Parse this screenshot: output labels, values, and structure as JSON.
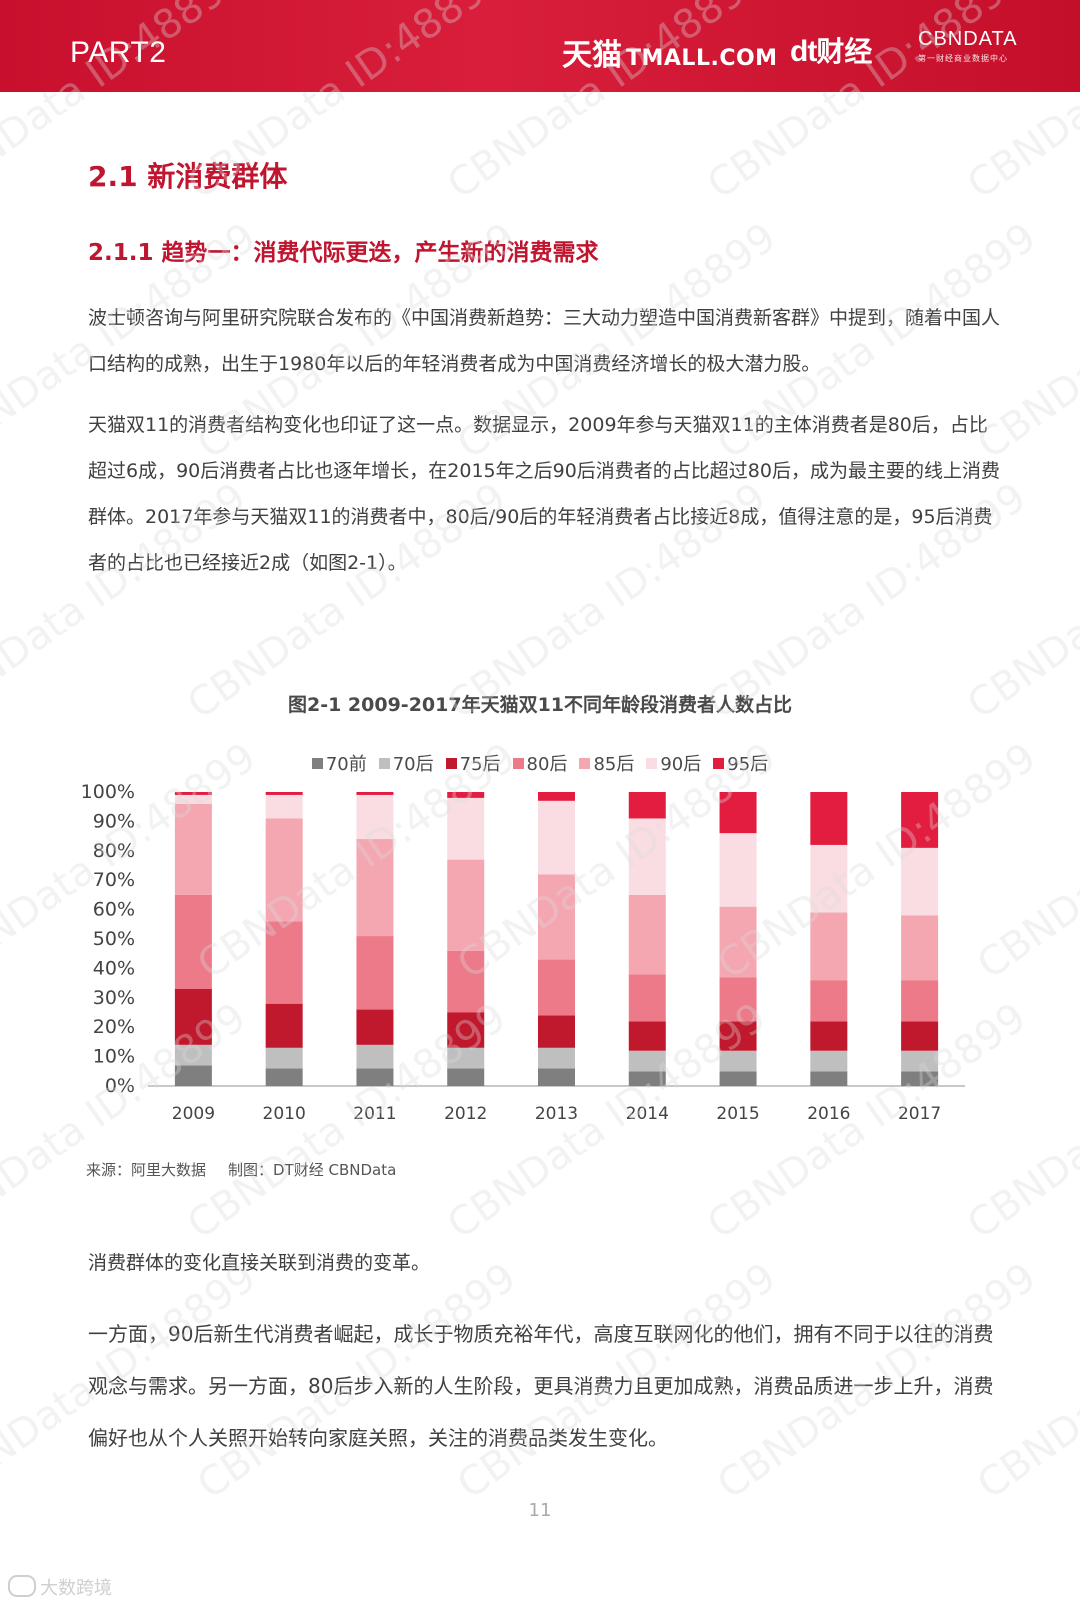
{
  "header": {
    "part": "PART2",
    "tmall_cn": "天猫",
    "tmall_en": "TMALL.COM",
    "dt_mark": "dt",
    "dt_cn": "财经",
    "cbn": "CBNDATA",
    "cbn_sub": "第一财经商业数据中心"
  },
  "watermark": "CBNData ID:48899",
  "section_title": "2.1 新消费群体",
  "subsection_title": "2.1.1  趋势一：消费代际更迭，产生新的消费需求",
  "paragraphs": {
    "p1": "波士顿咨询与阿里研究院联合发布的《中国消费新趋势：三大动力塑造中国消费新客群》中提到，随着中国人口结构的成熟，出生于1980年以后的年轻消费者成为中国消费经济增长的极大潜力股。",
    "p2": "天猫双11的消费者结构变化也印证了这一点。数据显示，2009年参与天猫双11的主体消费者是80后，占比超过6成，90后消费者占比也逐年增长，在2015年之后90后消费者的占比超过80后，成为最主要的线上消费群体。2017年参与天猫双11的消费者中，80后/90后的年轻消费者占比接近8成，值得注意的是，95后消费者的占比也已经接近2成（如图2-1）。",
    "p3": "消费群体的变化直接关联到消费的变革。",
    "p4": "一方面，90后新生代消费者崛起，成长于物质充裕年代，高度互联网化的他们，拥有不同于以往的消费观念与需求。另一方面，80后步入新的人生阶段，更具消费力且更加成熟，消费品质进一步上升，消费偏好也从个人关照开始转向家庭关照，关注的消费品类发生变化。"
  },
  "chart_data": {
    "type": "bar",
    "stacked": true,
    "title": "图2-1  2009-2017年天猫双11不同年龄段消费者人数占比",
    "categories": [
      "2009",
      "2010",
      "2011",
      "2012",
      "2013",
      "2014",
      "2015",
      "2016",
      "2017"
    ],
    "y_ticks": [
      "100%",
      "90%",
      "80%",
      "70%",
      "60%",
      "50%",
      "40%",
      "30%",
      "20%",
      "10%",
      "0%"
    ],
    "ylim": [
      0,
      100
    ],
    "legend_position": "top",
    "grid": false,
    "series": [
      {
        "name": "70前",
        "color": "#7f7f7f",
        "values": [
          7,
          6,
          6,
          6,
          6,
          5,
          5,
          5,
          5
        ]
      },
      {
        "name": "70后",
        "color": "#bfbfbf",
        "values": [
          7,
          7,
          8,
          7,
          7,
          7,
          7,
          7,
          7
        ]
      },
      {
        "name": "75后",
        "color": "#c0182c",
        "values": [
          19,
          15,
          12,
          12,
          11,
          10,
          10,
          10,
          10
        ]
      },
      {
        "name": "80后",
        "color": "#ec7a89",
        "values": [
          32,
          28,
          25,
          21,
          19,
          16,
          15,
          14,
          14
        ]
      },
      {
        "name": "85后",
        "color": "#f4a6b1",
        "values": [
          31,
          35,
          33,
          31,
          29,
          27,
          24,
          23,
          22
        ]
      },
      {
        "name": "90后",
        "color": "#f9dde2",
        "values": [
          3,
          8,
          15,
          21,
          25,
          26,
          25,
          23,
          23
        ]
      },
      {
        "name": "95后",
        "color": "#e31d3f",
        "values": [
          1,
          1,
          1,
          2,
          3,
          9,
          14,
          18,
          19
        ]
      }
    ]
  },
  "source": {
    "source_label": "来源：阿里大数据",
    "maker_label": "制图：DT财经   CBNData"
  },
  "page_number": "11",
  "footer_brand": "大数跨境"
}
